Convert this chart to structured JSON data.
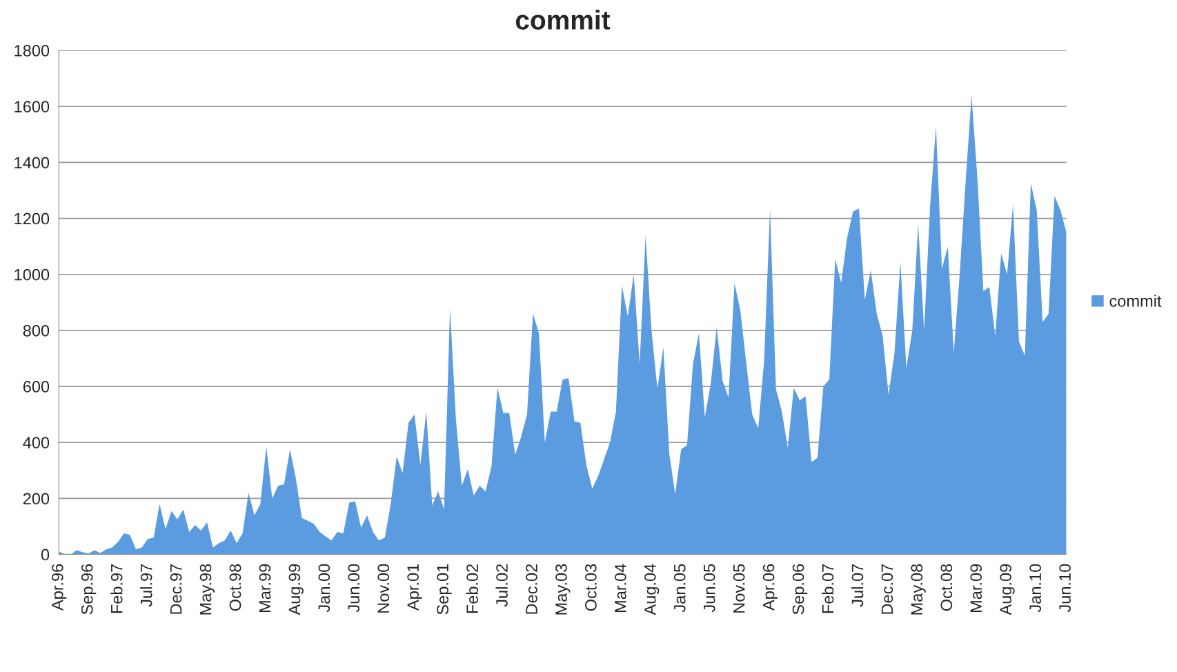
{
  "chart_data": {
    "type": "area",
    "title": "commit",
    "categories": [
      "Apr.96",
      null,
      null,
      null,
      null,
      "Sep.96",
      null,
      null,
      null,
      null,
      "Feb.97",
      null,
      null,
      null,
      null,
      "Jul.97",
      null,
      null,
      null,
      null,
      "Dec.97",
      null,
      null,
      null,
      null,
      "May.98",
      null,
      null,
      null,
      null,
      "Oct.98",
      null,
      null,
      null,
      null,
      "Mar.99",
      null,
      null,
      null,
      null,
      "Aug.99",
      null,
      null,
      null,
      null,
      "Jan.00",
      null,
      null,
      null,
      null,
      "Jun.00",
      null,
      null,
      null,
      null,
      "Nov.00",
      null,
      null,
      null,
      null,
      "Apr.01",
      null,
      null,
      null,
      null,
      "Sep.01",
      null,
      null,
      null,
      null,
      "Feb.02",
      null,
      null,
      null,
      null,
      "Jul.02",
      null,
      null,
      null,
      null,
      "Dec.02",
      null,
      null,
      null,
      null,
      "May.03",
      null,
      null,
      null,
      null,
      "Oct.03",
      null,
      null,
      null,
      null,
      "Mar.04",
      null,
      null,
      null,
      null,
      "Aug.04",
      null,
      null,
      null,
      null,
      "Jan.05",
      null,
      null,
      null,
      null,
      "Jun.05",
      null,
      null,
      null,
      null,
      "Nov.05",
      null,
      null,
      null,
      null,
      "Apr.06",
      null,
      null,
      null,
      null,
      "Sep.06",
      null,
      null,
      null,
      null,
      "Feb.07",
      null,
      null,
      null,
      null,
      "Jul.07",
      null,
      null,
      null,
      null,
      "Dec.07",
      null,
      null,
      null,
      null,
      "May.08",
      null,
      null,
      null,
      null,
      "Oct.08",
      null,
      null,
      null,
      null,
      "Mar.09",
      null,
      null,
      null,
      null,
      "Aug.09",
      null,
      null,
      null,
      null,
      "Jan.10",
      null,
      null,
      null,
      null,
      "Jun.10"
    ],
    "series": [
      {
        "name": "commit",
        "color": "#5b9be0",
        "values": [
          10,
          0,
          0,
          15,
          8,
          3,
          15,
          5,
          18,
          25,
          45,
          75,
          70,
          18,
          25,
          55,
          60,
          180,
          90,
          155,
          125,
          160,
          80,
          105,
          85,
          115,
          25,
          40,
          50,
          85,
          40,
          75,
          220,
          140,
          180,
          385,
          200,
          245,
          250,
          375,
          270,
          130,
          120,
          110,
          80,
          65,
          50,
          80,
          75,
          185,
          190,
          95,
          140,
          80,
          50,
          60,
          180,
          350,
          290,
          470,
          500,
          320,
          510,
          175,
          225,
          160,
          880,
          480,
          245,
          305,
          210,
          245,
          225,
          315,
          595,
          505,
          505,
          355,
          420,
          500,
          860,
          790,
          400,
          510,
          510,
          625,
          630,
          475,
          470,
          320,
          235,
          280,
          340,
          400,
          510,
          960,
          850,
          1000,
          680,
          1140,
          800,
          590,
          740,
          360,
          215,
          375,
          390,
          680,
          790,
          490,
          610,
          810,
          620,
          560,
          970,
          870,
          680,
          500,
          450,
          690,
          1235,
          590,
          510,
          380,
          595,
          550,
          565,
          330,
          345,
          600,
          625,
          1055,
          970,
          1130,
          1225,
          1235,
          910,
          1015,
          860,
          780,
          570,
          720,
          1045,
          665,
          800,
          1180,
          800,
          1240,
          1530,
          1020,
          1100,
          720,
          1000,
          1330,
          1640,
          1340,
          940,
          955,
          780,
          1075,
          1000,
          1250,
          760,
          710,
          1325,
          1230,
          830,
          860,
          1280,
          1230,
          1150
        ]
      }
    ],
    "ylim": [
      0,
      1800
    ],
    "yticks": [
      0,
      200,
      400,
      600,
      800,
      1000,
      1200,
      1400,
      1600,
      1800
    ],
    "grid": "y",
    "legend": "right"
  }
}
